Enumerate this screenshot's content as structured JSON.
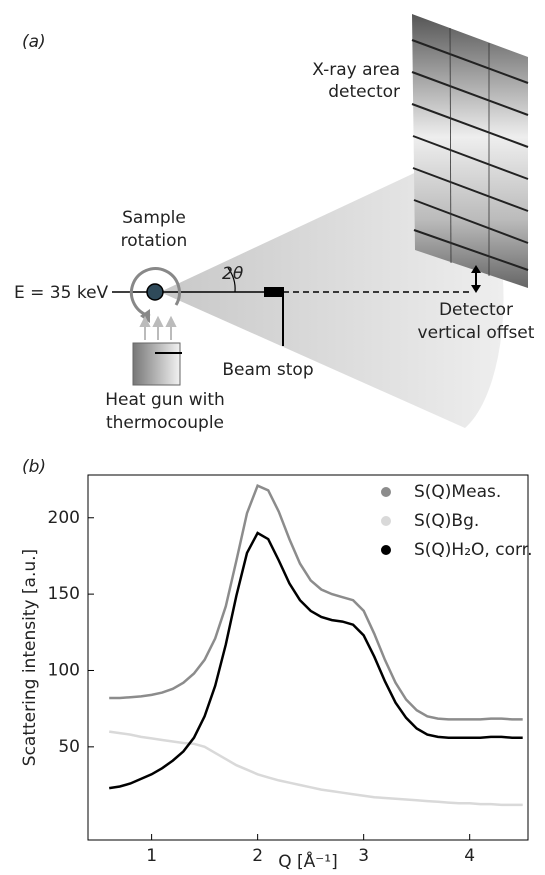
{
  "diagram": {
    "panel_label": "(a)",
    "detector": [
      "X-ray area",
      "detector"
    ],
    "sample_rotation": [
      "Sample",
      "rotation"
    ],
    "energy": "E = 35 keV",
    "angle": "2θ",
    "detector_offset": [
      "Detector",
      "vertical offset"
    ],
    "beam_stop": "Beam stop",
    "heat_gun": [
      "Heat gun with",
      "thermocouple"
    ]
  },
  "chart_data": {
    "type": "line",
    "panel_label": "(b)",
    "x_label": "Q [Å⁻¹]",
    "y_label": "Scattering intensity [a.u.]",
    "x": [
      0.6,
      0.7,
      0.8,
      0.9,
      1.0,
      1.1,
      1.2,
      1.3,
      1.4,
      1.5,
      1.6,
      1.7,
      1.8,
      1.9,
      2.0,
      2.1,
      2.2,
      2.3,
      2.4,
      2.5,
      2.6,
      2.7,
      2.8,
      2.9,
      3.0,
      3.1,
      3.2,
      3.3,
      3.4,
      3.5,
      3.6,
      3.7,
      3.8,
      3.9,
      4.0,
      4.1,
      4.2,
      4.3,
      4.4,
      4.5
    ],
    "series": [
      {
        "name": "S(Q)Meas.",
        "color": "#8c8c8c",
        "values": [
          82,
          82,
          82.5,
          83,
          84,
          85.5,
          88,
          92,
          98,
          107,
          121,
          142,
          172,
          203,
          221,
          218,
          204,
          186,
          170,
          159,
          153,
          150,
          148,
          146,
          139,
          124,
          107,
          92,
          81,
          74,
          70,
          68.5,
          68,
          68,
          68,
          68,
          68.5,
          68.5,
          68,
          68
        ]
      },
      {
        "name": "S(Q)Bg.",
        "color": "#d9d9d9",
        "values": [
          60,
          59,
          58,
          56.5,
          55.5,
          54.5,
          53.5,
          52.5,
          52,
          50,
          46,
          42,
          38,
          35,
          32,
          30,
          28,
          26.5,
          25,
          23.5,
          22,
          21,
          20,
          19,
          18,
          17,
          16.5,
          16,
          15.5,
          15,
          14.5,
          14,
          13.5,
          13,
          13,
          12.5,
          12.5,
          12,
          12,
          12
        ]
      },
      {
        "name": "S(Q)H₂O, corr.",
        "color": "#000000",
        "values": [
          23,
          24,
          26,
          29,
          32,
          36,
          41,
          47,
          56,
          70,
          90,
          117,
          149,
          177,
          190,
          186,
          172,
          157,
          146,
          139,
          135,
          133,
          132,
          130,
          123,
          109,
          93,
          79,
          69,
          62,
          58,
          56.5,
          56,
          56,
          56,
          56,
          56.5,
          56.5,
          56,
          56
        ]
      }
    ],
    "xlim": [
      0.4,
      4.55
    ],
    "ylim": [
      -11,
      228
    ],
    "xticks": [
      1,
      2,
      3,
      4
    ],
    "yticks": [
      50,
      100,
      150,
      200
    ],
    "legend": "upper right"
  }
}
